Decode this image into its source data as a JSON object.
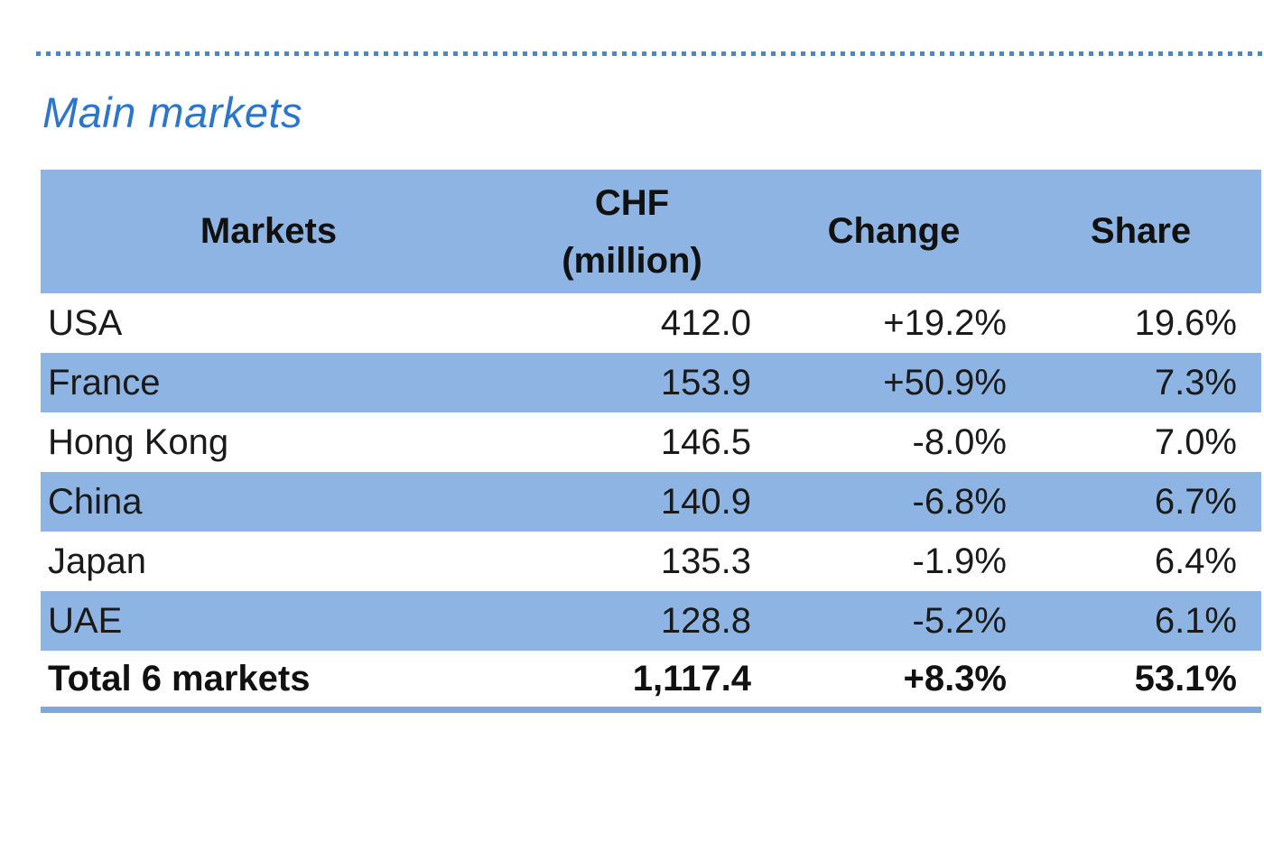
{
  "page": {
    "title": "Main markets"
  },
  "table": {
    "header": {
      "markets": "Markets",
      "chf_line1": "CHF",
      "chf_line2": "(million)",
      "change": "Change",
      "share": "Share"
    },
    "rows": [
      {
        "market": "USA",
        "chf": "412.0",
        "change": "+19.2%",
        "share": "19.6%"
      },
      {
        "market": "France",
        "chf": "153.9",
        "change": "+50.9%",
        "share": "7.3%"
      },
      {
        "market": "Hong Kong",
        "chf": "146.5",
        "change": "-8.0%",
        "share": "7.0%"
      },
      {
        "market": "China",
        "chf": "140.9",
        "change": "-6.8%",
        "share": "6.7%"
      },
      {
        "market": "Japan",
        "chf": "135.3",
        "change": "-1.9%",
        "share": "6.4%"
      },
      {
        "market": "UAE",
        "chf": "128.8",
        "change": "-5.2%",
        "share": "6.1%"
      }
    ],
    "total_row": {
      "market": "Total 6 markets",
      "chf": "1,117.4",
      "change": "+8.3%",
      "share": "53.1%"
    }
  },
  "colors": {
    "row_fill_blue": "#8db4e2",
    "title_blue": "#2b76cb",
    "dotted_line_blue": "#4a86c9",
    "bottom_bar_blue": "#7fa8d9",
    "text": "#1a1a1a"
  },
  "chart_data": {
    "type": "table",
    "title": "Main markets",
    "columns": [
      "Markets",
      "CHF (million)",
      "Change",
      "Share"
    ],
    "rows": [
      [
        "USA",
        412.0,
        "+19.2%",
        "19.6%"
      ],
      [
        "France",
        153.9,
        "+50.9%",
        "7.3%"
      ],
      [
        "Hong Kong",
        146.5,
        "-8.0%",
        "7.0%"
      ],
      [
        "China",
        140.9,
        "-6.8%",
        "6.7%"
      ],
      [
        "Japan",
        135.3,
        "-1.9%",
        "6.4%"
      ],
      [
        "UAE",
        128.8,
        "-5.2%",
        "6.1%"
      ]
    ],
    "total": [
      "Total 6 markets",
      1117.4,
      "+8.3%",
      "53.1%"
    ],
    "layout": "zebra striped rows (light blue #8db4e2), bold header on blue fill, bold total row, blue underline below table"
  }
}
